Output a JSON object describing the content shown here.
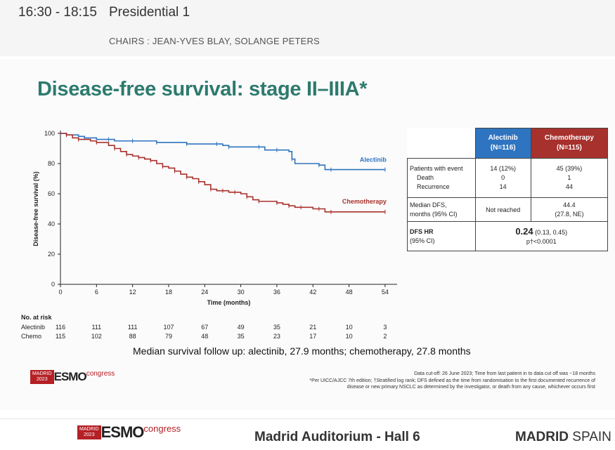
{
  "header": {
    "time": "16:30 - 18:15",
    "session": "Presidential 1",
    "chairs": "CHAIRS : JEAN-YVES BLAY, SOLANGE PETERS"
  },
  "slide": {
    "title": "Disease-free survival: stage II–IIIA*",
    "median_followup": "Median survival follow up: alectinib, 27.9 months; chemotherapy, 27.8 months",
    "footnote_lines": [
      "Data cut-off: 26 June 2023; Time from last patient in to data cut off was ~18 months",
      "*Per UICC/AJCC 7th edition; †Stratified log rank; DFS defined as the time from randomisation to the first documented recurrence of",
      "disease or new primary NSCLC as determined by the investigator, or death from any cause, whichever occurs first"
    ],
    "logo_small": {
      "box_top": "MADRID",
      "box_bottom": "2023",
      "brand": "ESMO",
      "suffix": "congress"
    }
  },
  "chart_data": {
    "type": "line",
    "xlabel": "Time (months)",
    "ylabel": "Disease-free survival (%)",
    "xlim": [
      0,
      56
    ],
    "ylim": [
      0,
      100
    ],
    "xticks": [
      0,
      6,
      12,
      18,
      24,
      30,
      36,
      42,
      48,
      54
    ],
    "yticks": [
      0,
      20,
      40,
      60,
      80,
      100
    ],
    "colors": {
      "Alectinib": "#2f74c0",
      "Chemotherapy": "#a7312d"
    },
    "series": [
      {
        "name": "Alectinib",
        "x": [
          0,
          1,
          3,
          4,
          6,
          8,
          9,
          12,
          14,
          16,
          19,
          21,
          24,
          26,
          27,
          28,
          30,
          33,
          34,
          36,
          38,
          38.5,
          39,
          43,
          44,
          45,
          48,
          54
        ],
        "y": [
          100,
          99,
          98,
          97,
          96,
          96,
          95,
          95,
          95,
          94,
          94,
          93,
          93,
          93,
          92,
          91,
          91,
          91,
          89,
          89,
          88,
          83,
          80,
          79,
          76,
          76,
          76,
          76
        ]
      },
      {
        "name": "Chemotherapy",
        "x": [
          0,
          1,
          2,
          3,
          5,
          6,
          8,
          9,
          10,
          11,
          12,
          13,
          14,
          15,
          16,
          17,
          18,
          19,
          20,
          21,
          22,
          23,
          24,
          25,
          26,
          27,
          28,
          29,
          30,
          31,
          32,
          33,
          34,
          36,
          37,
          38,
          39,
          40,
          42,
          43,
          44,
          45,
          48,
          54
        ],
        "y": [
          100,
          99,
          97,
          96,
          95,
          94,
          92,
          90,
          88,
          86,
          85,
          84,
          83,
          82,
          80,
          78,
          77,
          75,
          73,
          71,
          70,
          68,
          66,
          63,
          62,
          62,
          61,
          61,
          60,
          58,
          56,
          55,
          55,
          54,
          53,
          52,
          51,
          51,
          50,
          50,
          48,
          48,
          48,
          48
        ]
      }
    ],
    "annotations": [
      "Alectinib",
      "Chemotherapy"
    ],
    "at_risk": {
      "header": "No. at risk",
      "rows": [
        {
          "label": "Alectinib",
          "values": [
            "116",
            "111",
            "111",
            "107",
            "67",
            "49",
            "35",
            "21",
            "10",
            "3"
          ]
        },
        {
          "label": "Chemo",
          "values": [
            "115",
            "102",
            "88",
            "79",
            "48",
            "35",
            "23",
            "17",
            "10",
            "2"
          ]
        }
      ]
    }
  },
  "table": {
    "col_alectinib": "Alectinib",
    "col_alectinib_n": "(N=116)",
    "col_chemo": "Chemotherapy",
    "col_chemo_n": "(N=115)",
    "rows": {
      "patients_event": {
        "label": "Patients with event",
        "alectinib": "14 (12%)",
        "chemo": "45 (39%)"
      },
      "death": {
        "label": "Death",
        "alectinib": "0",
        "chemo": "1"
      },
      "recurrence": {
        "label": "Recurrence",
        "alectinib": "14",
        "chemo": "44"
      },
      "median_dfs": {
        "label1": "Median DFS,",
        "label2": "months (95% CI)",
        "alectinib": "Not reached",
        "chemo1": "44.4",
        "chemo2": "(27.8, NE)"
      },
      "dfs_hr": {
        "label1": "DFS HR",
        "label2": "(95% CI)",
        "value": "0.24",
        "ci": "(0.13, 0.45)",
        "p": "p†<0.0001"
      }
    }
  },
  "footer": {
    "logo_box_top": "MADRID",
    "logo_box_bottom": "2023",
    "logo_brand": "ESMO",
    "logo_suffix": "congress",
    "venue": "Madrid Auditorium - Hall 6",
    "city_bold": "MADRID",
    "city_rest": "SPAIN"
  }
}
